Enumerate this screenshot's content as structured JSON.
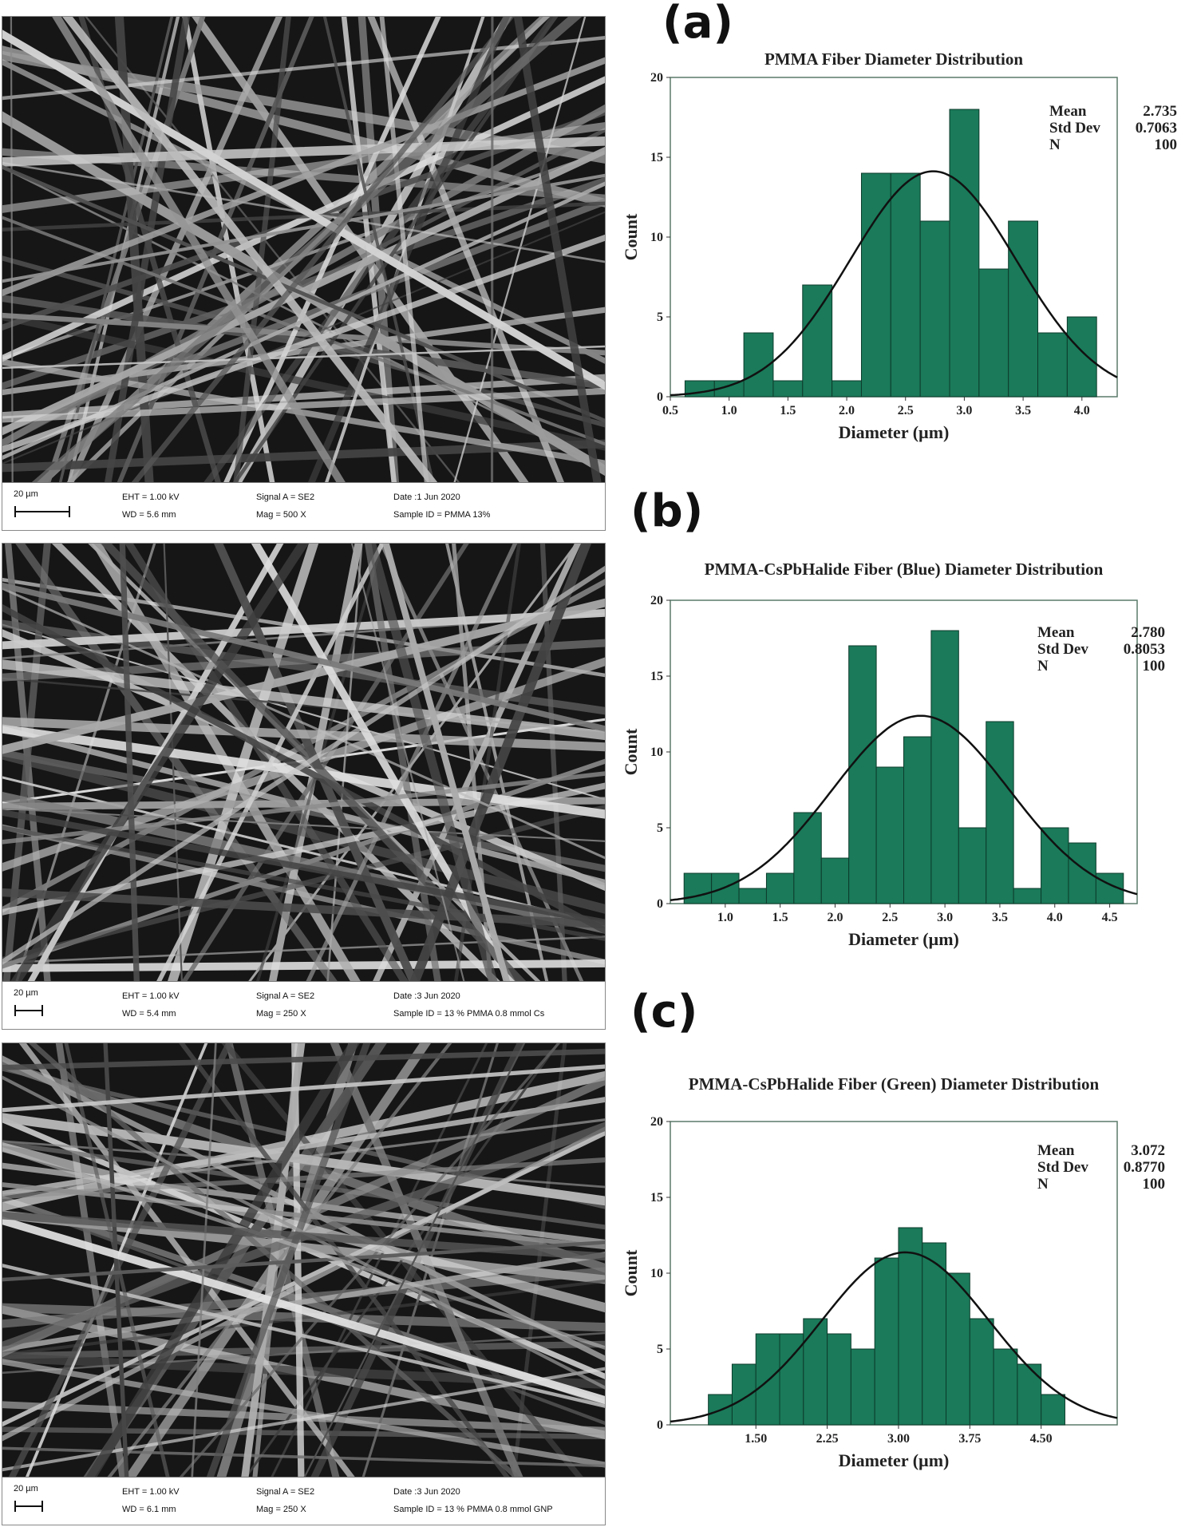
{
  "sem_images": [
    {
      "scale": "20 µm",
      "eht": "EHT = 1.00 kV",
      "wd": "WD = 5.6 mm",
      "signal": "Signal A = SE2",
      "mag": "Mag =    500 X",
      "date": "Date :1 Jun 2020",
      "sample": "Sample ID = PMMA 13%"
    },
    {
      "scale": "20 µm",
      "eht": "EHT = 1.00 kV",
      "wd": "WD = 5.4 mm",
      "signal": "Signal A = SE2",
      "mag": "Mag =    250 X",
      "date": "Date :3 Jun 2020",
      "sample": "Sample ID = 13 % PMMA 0.8 mmol Cs"
    },
    {
      "scale": "20 µm",
      "eht": "EHT = 1.00 kV",
      "wd": "WD = 6.1 mm",
      "signal": "Signal A = SE2",
      "mag": "Mag =    250 X",
      "date": "Date :3 Jun 2020",
      "sample": "Sample ID = 13 % PMMA 0.8 mmol GNP"
    }
  ],
  "panel_labels": [
    "(a)",
    "(b)",
    "(c)"
  ],
  "colors": {
    "bar_fill": "#1a7a5a",
    "bar_edge": "#0d3b2b",
    "curve": "#111111",
    "frame": "#5a7a6a"
  },
  "chart_data": [
    {
      "type": "bar",
      "title": "PMMA Fiber Diameter Distribution",
      "xlabel": "Diameter (µm)",
      "ylabel": "Count",
      "xlim": [
        0.5,
        4.3
      ],
      "ylim": [
        0,
        20
      ],
      "xticks": [
        "0.5",
        "1.0",
        "1.5",
        "2.0",
        "2.5",
        "3.0",
        "3.5",
        "4.0"
      ],
      "yticks": [
        "0",
        "5",
        "10",
        "15",
        "20"
      ],
      "bin_start": 0.625,
      "bin_width": 0.25,
      "values": [
        1,
        1,
        4,
        1,
        7,
        1,
        14,
        14,
        11,
        18,
        8,
        11,
        4,
        5
      ],
      "stats": {
        "mean_label": "Mean",
        "mean": "2.735",
        "sd_label": "Std Dev",
        "sd": "0.7063",
        "n_label": "N",
        "n": "100"
      },
      "fit": {
        "mean": 2.735,
        "sd": 0.7063,
        "n": 100
      }
    },
    {
      "type": "bar",
      "title": "PMMA-CsPbHalide Fiber (Blue) Diameter Distribution",
      "xlabel": "Diameter (µm)",
      "ylabel": "Count",
      "xlim": [
        0.5,
        4.75
      ],
      "ylim": [
        0,
        20
      ],
      "xticks": [
        "1.0",
        "1.5",
        "2.0",
        "2.5",
        "3.0",
        "3.5",
        "4.0",
        "4.5"
      ],
      "yticks": [
        "0",
        "5",
        "10",
        "15",
        "20"
      ],
      "bin_start": 0.625,
      "bin_width": 0.25,
      "values": [
        2,
        2,
        1,
        2,
        6,
        3,
        17,
        9,
        11,
        18,
        5,
        12,
        1,
        5,
        4,
        2
      ],
      "stats": {
        "mean_label": "Mean",
        "mean": "2.780",
        "sd_label": "Std Dev",
        "sd": "0.8053",
        "n_label": "N",
        "n": "100"
      },
      "fit": {
        "mean": 2.78,
        "sd": 0.8053,
        "n": 100
      }
    },
    {
      "type": "bar",
      "title": "PMMA-CsPbHalide Fiber (Green) Diameter Distribution",
      "xlabel": "Diameter (µm)",
      "ylabel": "Count",
      "xlim": [
        0.6,
        5.3
      ],
      "ylim": [
        0,
        20
      ],
      "xticks": [
        "1.50",
        "2.25",
        "3.00",
        "3.75",
        "4.50"
      ],
      "yticks": [
        "0",
        "5",
        "10",
        "15",
        "20"
      ],
      "bin_start": 1.0,
      "bin_width": 0.25,
      "values": [
        2,
        4,
        6,
        6,
        7,
        6,
        5,
        11,
        13,
        12,
        10,
        7,
        5,
        4,
        2
      ],
      "stats": {
        "mean_label": "Mean",
        "mean": "3.072",
        "sd_label": "Std Dev",
        "sd": "0.8770",
        "n_label": "N",
        "n": "100"
      },
      "fit": {
        "mean": 3.072,
        "sd": 0.877,
        "n": 100
      }
    }
  ]
}
